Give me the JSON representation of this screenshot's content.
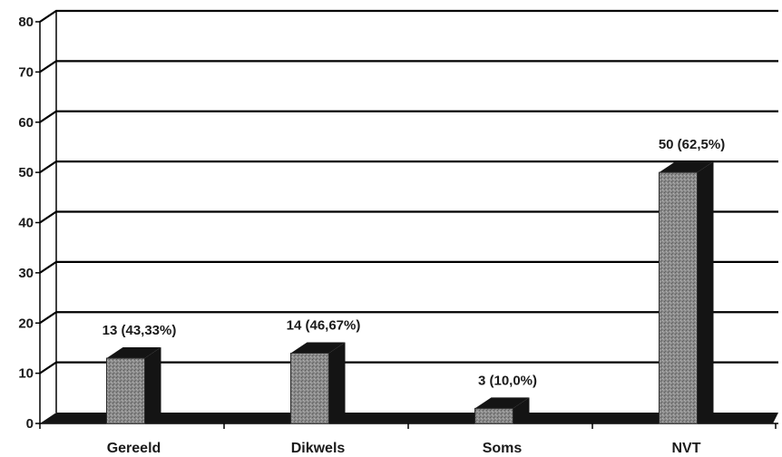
{
  "chart_data": {
    "type": "bar",
    "categories": [
      "Gereeld",
      "Dikwels",
      "Soms",
      "NVT"
    ],
    "values": [
      13,
      14,
      3,
      50
    ],
    "data_labels": [
      "13 (43,33%)",
      "14 (46,67%)",
      "3 (10,0%)",
      "50 (62,5%)"
    ],
    "title": "",
    "xlabel": "",
    "ylabel": "",
    "ylim": [
      0,
      80
    ],
    "yticks": [
      "0",
      "10",
      "20",
      "30",
      "40",
      "50",
      "60",
      "70",
      "80"
    ],
    "grid": true,
    "legend": "none",
    "style": "3d-column",
    "colors": {
      "bar_face": "#8c8c8c",
      "bar_side": "#141414",
      "floor": "#141414",
      "grid": "#000000"
    }
  }
}
